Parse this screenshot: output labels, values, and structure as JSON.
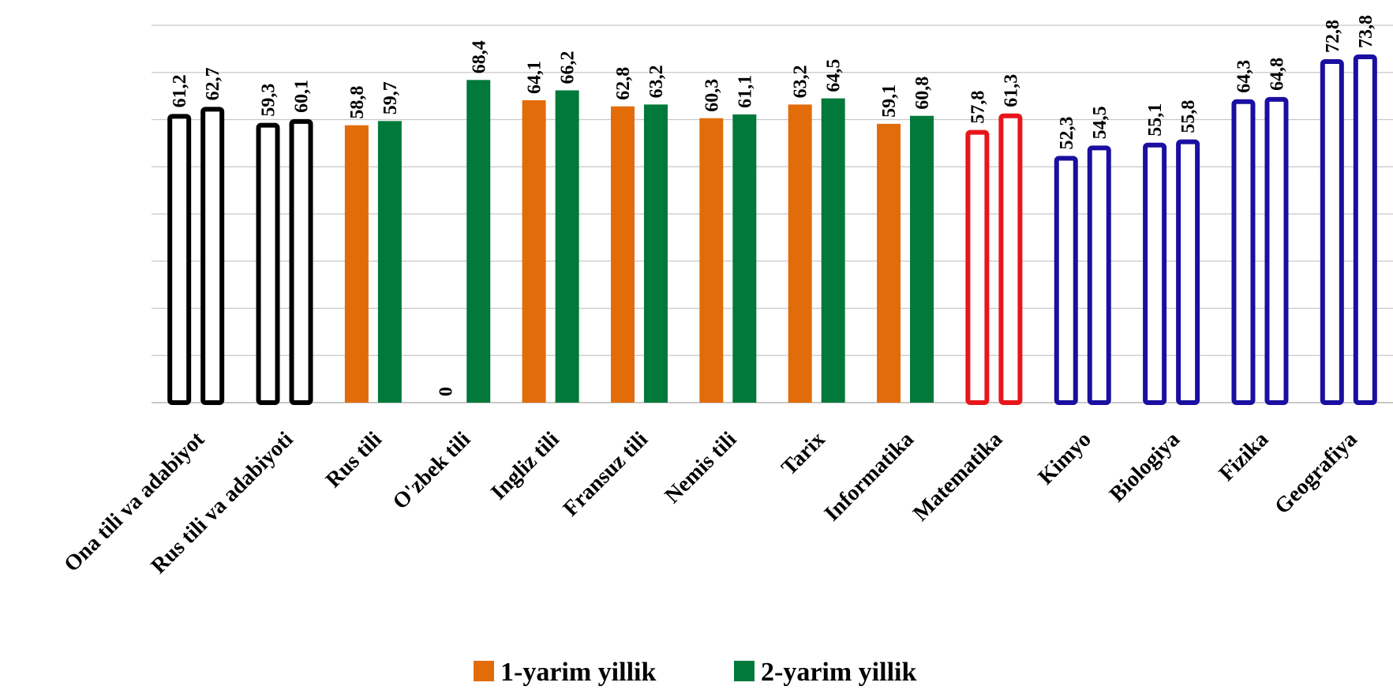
{
  "chart_data": {
    "type": "bar",
    "categories": [
      "Ona tili va adabiyot",
      "Rus tili va adabiyoti",
      "Rus tili",
      "O'zbek tili",
      "Ingliz tili",
      "Fransuz tili",
      "Nemis tili",
      "Tarix",
      "Informatika",
      "Matematika",
      "Kimyo",
      "Biologiya",
      "Fizika",
      "Geografiya"
    ],
    "series": [
      {
        "name": "1-yarim yillik",
        "values": [
          61.2,
          59.3,
          58.8,
          0,
          64.1,
          62.8,
          60.3,
          63.2,
          59.1,
          57.8,
          52.3,
          55.1,
          64.3,
          72.8
        ]
      },
      {
        "name": "2-yarim yillik",
        "values": [
          62.7,
          60.1,
          59.7,
          68.4,
          66.2,
          63.2,
          61.1,
          64.5,
          60.8,
          61.3,
          54.5,
          55.8,
          64.8,
          73.8
        ]
      }
    ],
    "value_labels": [
      [
        "61,2",
        "59,3",
        "58,8",
        "0",
        "64,1",
        "62,8",
        "60,3",
        "63,2",
        "59,1",
        "57,8",
        "52,3",
        "55,1",
        "64,3",
        "72,8"
      ],
      [
        "62,7",
        "60,1",
        "59,7",
        "68,4",
        "66,2",
        "63,2",
        "61,1",
        "64,5",
        "60,8",
        "61,3",
        "54,5",
        "55,8",
        "64,8",
        "73,8"
      ]
    ],
    "category_style": [
      "outline",
      "outline",
      "filled",
      "filled",
      "filled",
      "filled",
      "filled",
      "filled",
      "filled",
      "outline",
      "outline",
      "outline",
      "outline",
      "outline"
    ],
    "outline_colors": [
      "#000000",
      "#000000",
      "",
      "",
      "",
      "",
      "",
      "",
      "",
      "#e8161b",
      "#1a0fa0",
      "#1a0fa0",
      "#1a0fa0",
      "#1a0fa0"
    ],
    "series_colors": [
      "#e36c0a",
      "#00793a"
    ],
    "ylim": [
      0,
      80
    ],
    "grid": true,
    "legend_position": "bottom"
  }
}
